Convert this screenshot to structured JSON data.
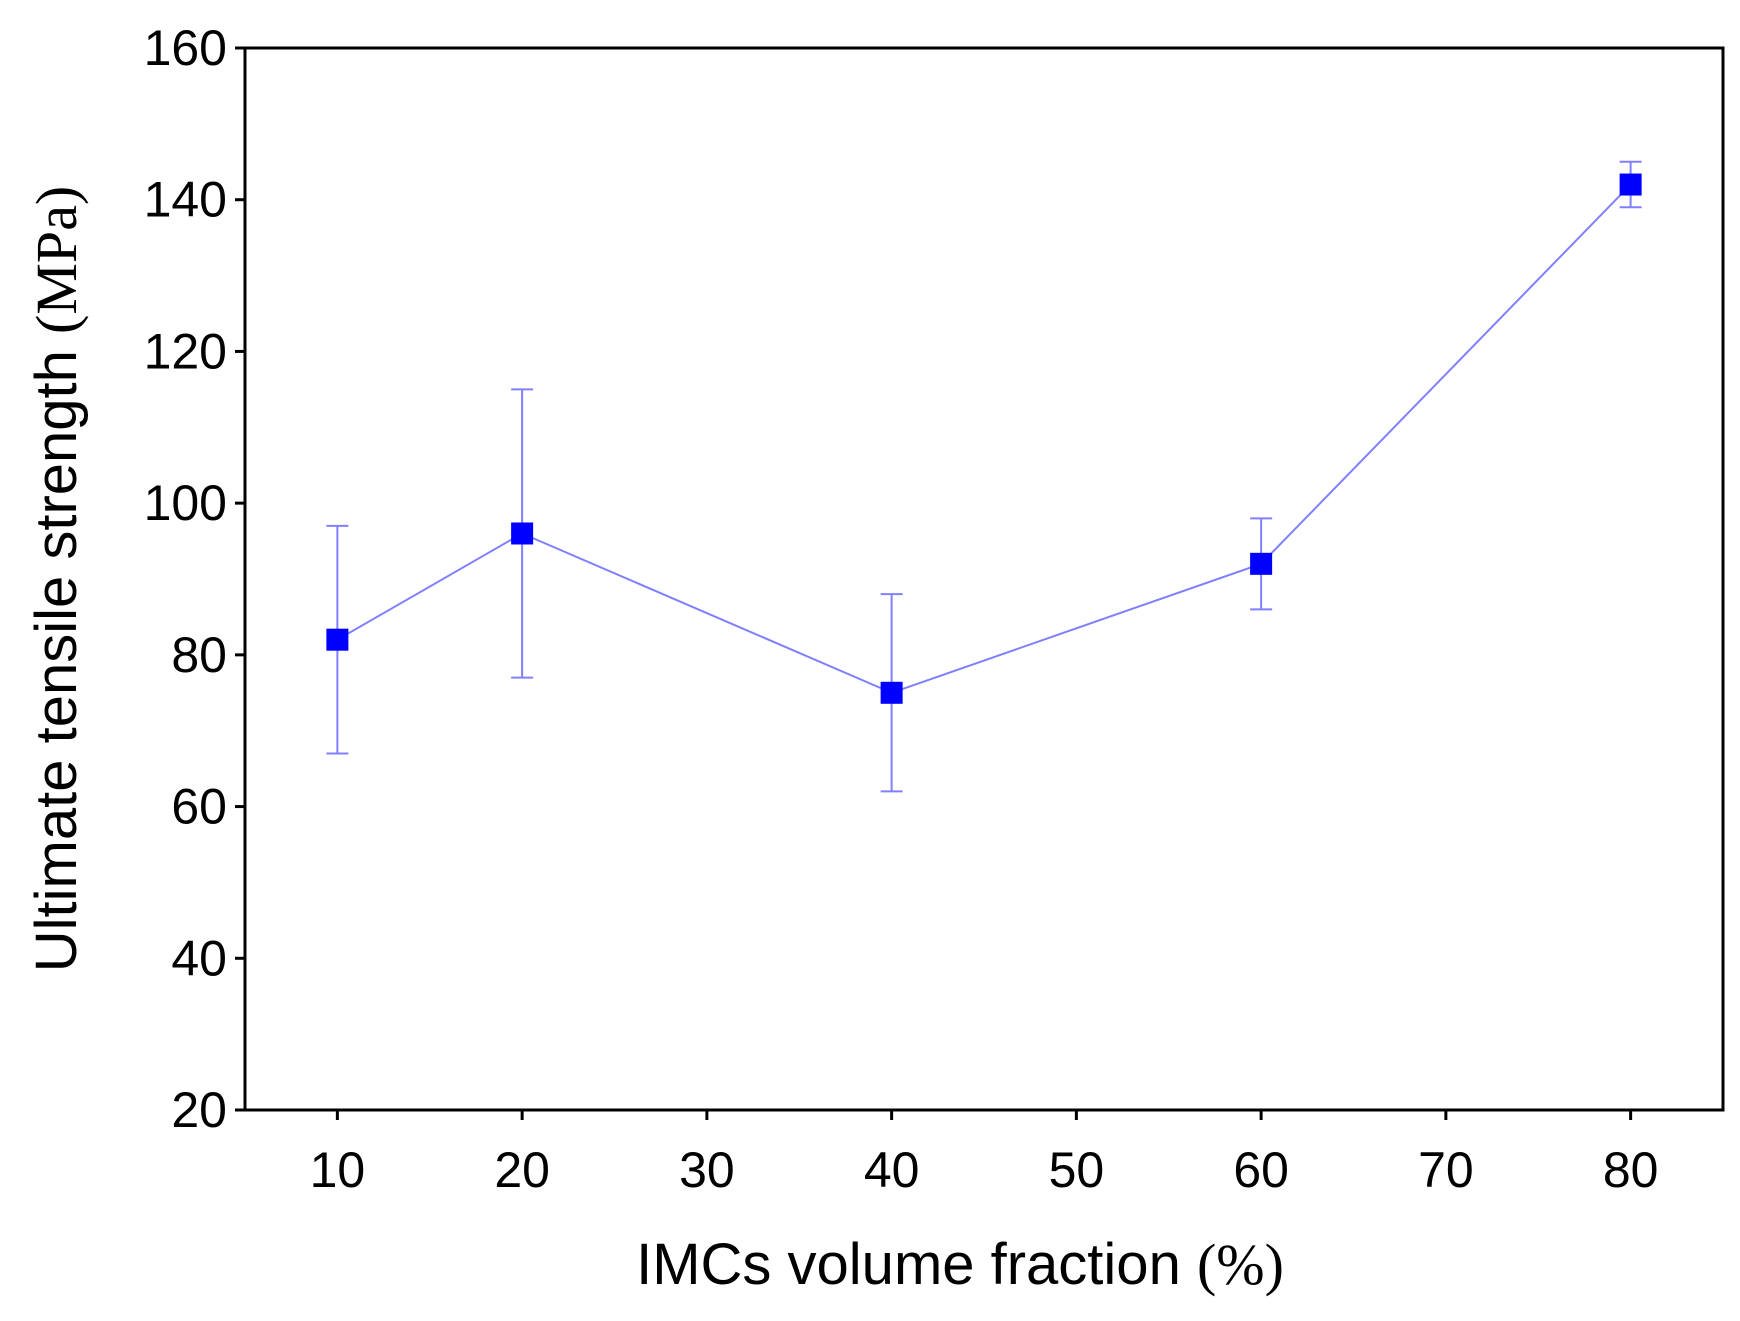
{
  "chart_data": {
    "type": "line",
    "title": "",
    "xlabel": {
      "main": "IMCs volume fraction ",
      "unit": "(%)"
    },
    "ylabel": {
      "main": "Ultimate tensile strength ",
      "unit": "(MPa)"
    },
    "xlim": [
      5,
      85
    ],
    "ylim": [
      20,
      160
    ],
    "xticks": [
      10,
      20,
      30,
      40,
      50,
      60,
      70,
      80
    ],
    "yticks": [
      20,
      40,
      60,
      80,
      100,
      120,
      140,
      160
    ],
    "grid": false,
    "legend": null,
    "series": [
      {
        "name": "Ultimate tensile strength",
        "color": "#0000ff",
        "line_color": "#8080ff",
        "marker": "square",
        "x": [
          10,
          20,
          40,
          60,
          80
        ],
        "y": [
          82,
          96,
          75,
          92,
          142
        ],
        "err_low": [
          67,
          77,
          62,
          86,
          139
        ],
        "err_high": [
          97,
          115,
          88,
          98,
          145
        ]
      }
    ]
  }
}
